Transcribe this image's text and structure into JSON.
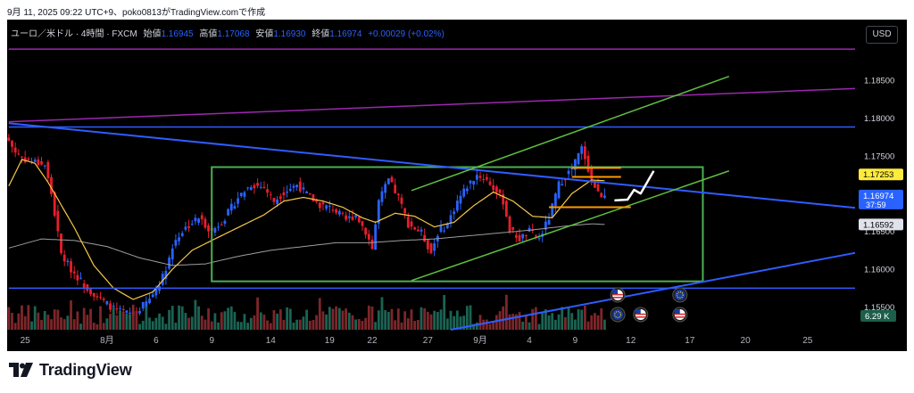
{
  "caption": "9月 11, 2025 09:22 UTC+9、poko0813がTradingView.comで作成",
  "header": {
    "symbol": "ユーロ／米ドル · 4時間 · FXCM",
    "open_label": "始値",
    "open": "1.16945",
    "high_label": "高値",
    "high": "1.17068",
    "low_label": "安値",
    "low": "1.16930",
    "close_label": "終値",
    "close": "1.16974",
    "change": "+0.00029 (+0.02%)"
  },
  "currency_button": "USD",
  "brand": "TradingView",
  "colors": {
    "up": "#2962ff",
    "down": "#e91e2c",
    "ema_fast": "#f7c948",
    "ma_slow": "#9e9e9e",
    "rectangle": "#4caf50",
    "channel": "#5fbf3f",
    "blue_line": "#2f5cff",
    "purple_line": "#9c27b0",
    "orange": "#ff9800",
    "badge_yellow": "#ffeb3b",
    "badge_blue": "#2962ff",
    "badge_gray": "#e0e3eb"
  },
  "chart_data": {
    "type": "candlestick",
    "price_axis": {
      "min": 1.152,
      "max": 1.193,
      "ticks": [
        "1.18500",
        "1.18000",
        "1.17500",
        "1.16500",
        "1.16000",
        "1.15500"
      ],
      "tick_values": [
        1.185,
        1.18,
        1.175,
        1.165,
        1.16,
        1.155
      ]
    },
    "badges": [
      {
        "text": "1.17253",
        "value": 1.17253,
        "style": "yellow"
      },
      {
        "text": "1.16974",
        "value": 1.16974,
        "style": "blue",
        "sub": "37:59"
      },
      {
        "text": "1.16592",
        "value": 1.16592,
        "style": "gray"
      }
    ],
    "volume_badge": "6.29 K",
    "date_labels": [
      "25",
      "8月",
      "6",
      "9",
      "14",
      "19",
      "22",
      "27",
      "9月",
      "4",
      "9",
      "12",
      "17",
      "20",
      "25"
    ],
    "date_bars": [
      5,
      30,
      45,
      62,
      80,
      98,
      111,
      128,
      144,
      159,
      173,
      190,
      208,
      225,
      244
    ],
    "total_bars": 259,
    "last_bar": 182,
    "close_anchors": [
      [
        0,
        1.177
      ],
      [
        2,
        1.1755
      ],
      [
        5,
        1.1745
      ],
      [
        8,
        1.1742
      ],
      [
        11,
        1.1738
      ],
      [
        13,
        1.17
      ],
      [
        16,
        1.162
      ],
      [
        19,
        1.16
      ],
      [
        24,
        1.1575
      ],
      [
        28,
        1.156
      ],
      [
        33,
        1.1545
      ],
      [
        38,
        1.154
      ],
      [
        43,
        1.156
      ],
      [
        47,
        1.159
      ],
      [
        51,
        1.164
      ],
      [
        54,
        1.1655
      ],
      [
        58,
        1.1668
      ],
      [
        62,
        1.165
      ],
      [
        66,
        1.1668
      ],
      [
        70,
        1.1695
      ],
      [
        74,
        1.1712
      ],
      [
        78,
        1.1708
      ],
      [
        81,
        1.169
      ],
      [
        84,
        1.1702
      ],
      [
        88,
        1.1712
      ],
      [
        92,
        1.1695
      ],
      [
        95,
        1.1685
      ],
      [
        99,
        1.168
      ],
      [
        103,
        1.1665
      ],
      [
        106,
        1.1672
      ],
      [
        109,
        1.165
      ],
      [
        111,
        1.1628
      ],
      [
        113,
        1.169
      ],
      [
        116,
        1.1718
      ],
      [
        119,
        1.1695
      ],
      [
        122,
        1.166
      ],
      [
        126,
        1.1648
      ],
      [
        129,
        1.1622
      ],
      [
        131,
        1.1648
      ],
      [
        134,
        1.166
      ],
      [
        137,
        1.169
      ],
      [
        140,
        1.171
      ],
      [
        143,
        1.1725
      ],
      [
        146,
        1.1718
      ],
      [
        149,
        1.1702
      ],
      [
        151,
        1.169
      ],
      [
        153,
        1.1652
      ],
      [
        156,
        1.164
      ],
      [
        159,
        1.165
      ],
      [
        162,
        1.164
      ],
      [
        165,
        1.1668
      ],
      [
        168,
        1.1712
      ],
      [
        171,
        1.1728
      ],
      [
        173,
        1.1742
      ],
      [
        175,
        1.176
      ],
      [
        176,
        1.1748
      ],
      [
        178,
        1.1718
      ],
      [
        180,
        1.17
      ],
      [
        182,
        1.16974
      ]
    ],
    "fast_ma_anchors": [
      [
        0,
        1.171
      ],
      [
        4,
        1.1745
      ],
      [
        8,
        1.174
      ],
      [
        12,
        1.1715
      ],
      [
        16,
        1.1685
      ],
      [
        20,
        1.1655
      ],
      [
        26,
        1.1605
      ],
      [
        32,
        1.1575
      ],
      [
        38,
        1.156
      ],
      [
        44,
        1.157
      ],
      [
        50,
        1.16
      ],
      [
        56,
        1.1625
      ],
      [
        62,
        1.1638
      ],
      [
        70,
        1.1655
      ],
      [
        78,
        1.1672
      ],
      [
        84,
        1.169
      ],
      [
        90,
        1.1695
      ],
      [
        96,
        1.169
      ],
      [
        102,
        1.1682
      ],
      [
        108,
        1.1668
      ],
      [
        112,
        1.1662
      ],
      [
        118,
        1.1674
      ],
      [
        124,
        1.167
      ],
      [
        130,
        1.1656
      ],
      [
        136,
        1.1662
      ],
      [
        142,
        1.1684
      ],
      [
        148,
        1.1702
      ],
      [
        154,
        1.169
      ],
      [
        160,
        1.167
      ],
      [
        166,
        1.1668
      ],
      [
        172,
        1.17
      ],
      [
        178,
        1.1718
      ],
      [
        182,
        1.1717
      ]
    ],
    "slow_ma_anchors": [
      [
        0,
        1.1628
      ],
      [
        10,
        1.164
      ],
      [
        20,
        1.1638
      ],
      [
        30,
        1.163
      ],
      [
        40,
        1.1615
      ],
      [
        50,
        1.1605
      ],
      [
        60,
        1.1607
      ],
      [
        70,
        1.1617
      ],
      [
        80,
        1.1625
      ],
      [
        90,
        1.163
      ],
      [
        100,
        1.1635
      ],
      [
        110,
        1.1635
      ],
      [
        120,
        1.1638
      ],
      [
        130,
        1.164
      ],
      [
        140,
        1.1644
      ],
      [
        150,
        1.1648
      ],
      [
        160,
        1.1652
      ],
      [
        170,
        1.1657
      ],
      [
        178,
        1.166
      ],
      [
        182,
        1.16592
      ]
    ],
    "trendlines": [
      {
        "name": "blue-down-trendline",
        "color": "blue_line",
        "width": 2,
        "from": [
          0,
          1.1793
        ],
        "to": [
          259,
          1.1681
        ]
      },
      {
        "name": "blue-up-trendline",
        "color": "blue_line",
        "width": 2,
        "from": [
          135,
          1.152
        ],
        "to": [
          259,
          1.1622
        ]
      },
      {
        "name": "blue-horizontal-top",
        "color": "blue_line",
        "width": 1.5,
        "from": [
          0,
          1.1788
        ],
        "to": [
          259,
          1.1788
        ]
      },
      {
        "name": "blue-horizontal-bottom",
        "color": "blue_line",
        "width": 1.5,
        "from": [
          0,
          1.1575
        ],
        "to": [
          259,
          1.1575
        ]
      },
      {
        "name": "purple-horizontal",
        "color": "purple_line",
        "width": 1.5,
        "from": [
          0,
          1.1891
        ],
        "to": [
          259,
          1.1891
        ]
      },
      {
        "name": "purple-rising-line",
        "color": "purple_line",
        "width": 1.5,
        "from": [
          0,
          1.1795
        ],
        "to": [
          259,
          1.1839
        ]
      },
      {
        "name": "channel-upper-line",
        "color": "channel",
        "width": 1.5,
        "from": [
          123,
          1.1704
        ],
        "to": [
          220,
          1.1855
        ]
      },
      {
        "name": "channel-lower-line",
        "color": "channel",
        "width": 1.5,
        "from": [
          123,
          1.1585
        ],
        "to": [
          220,
          1.173
        ]
      },
      {
        "name": "orange-level-1",
        "color": "orange",
        "width": 2,
        "from": [
          172,
          1.1734
        ],
        "to": [
          187,
          1.1734
        ]
      },
      {
        "name": "orange-level-2",
        "color": "orange",
        "width": 2,
        "from": [
          172,
          1.1722
        ],
        "to": [
          187,
          1.1722
        ]
      },
      {
        "name": "orange-level-3",
        "color": "orange",
        "width": 2,
        "from": [
          165,
          1.1682
        ],
        "to": [
          190,
          1.1682
        ]
      }
    ],
    "rectangle": {
      "from_bar": 62,
      "to_bar": 212,
      "top": 1.1735,
      "bottom": 1.1584
    },
    "forecast_path": [
      [
        185,
        1.1691
      ],
      [
        189,
        1.1692
      ],
      [
        191,
        1.1705
      ],
      [
        193,
        1.17
      ],
      [
        197,
        1.173
      ]
    ],
    "event_markers": [
      {
        "bar": 186,
        "row": 0,
        "kind": "us"
      },
      {
        "bar": 205,
        "row": 0,
        "kind": "eu"
      },
      {
        "bar": 186,
        "row": 1,
        "kind": "eu"
      },
      {
        "bar": 193,
        "row": 1,
        "kind": "us"
      },
      {
        "bar": 205,
        "row": 1,
        "kind": "us"
      }
    ]
  }
}
